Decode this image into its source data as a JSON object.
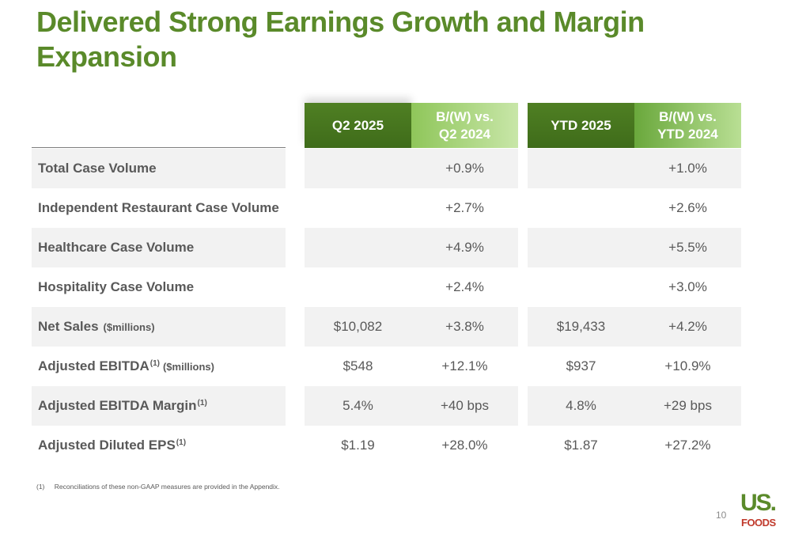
{
  "title": "Delivered Strong Earnings Growth and Margin Expansion",
  "headers": {
    "q2_2025": "Q2 2025",
    "q2_vs_line1": "B/(W) vs.",
    "q2_vs_line2": "Q2 2024",
    "ytd_2025": "YTD 2025",
    "ytd_vs_line1": "B/(W) vs.",
    "ytd_vs_line2": "YTD 2024"
  },
  "rows": [
    {
      "label": "Total Case Volume",
      "sup": "",
      "unit": "",
      "q2": "",
      "q2_vs": "+0.9%",
      "ytd": "",
      "ytd_vs": "+1.0%"
    },
    {
      "label": "Independent Restaurant Case Volume",
      "sup": "",
      "unit": "",
      "q2": "",
      "q2_vs": "+2.7%",
      "ytd": "",
      "ytd_vs": "+2.6%"
    },
    {
      "label": "Healthcare Case Volume",
      "sup": "",
      "unit": "",
      "q2": "",
      "q2_vs": "+4.9%",
      "ytd": "",
      "ytd_vs": "+5.5%"
    },
    {
      "label": "Hospitality Case Volume",
      "sup": "",
      "unit": "",
      "q2": "",
      "q2_vs": "+2.4%",
      "ytd": "",
      "ytd_vs": "+3.0%"
    },
    {
      "label": "Net Sales",
      "sup": "",
      "unit": "($millions)",
      "q2": "$10,082",
      "q2_vs": "+3.8%",
      "ytd": "$19,433",
      "ytd_vs": "+4.2%"
    },
    {
      "label": "Adjusted EBITDA",
      "sup": "(1)",
      "unit": "($millions)",
      "q2": "$548",
      "q2_vs": "+12.1%",
      "ytd": "$937",
      "ytd_vs": "+10.9%"
    },
    {
      "label": "Adjusted EBITDA Margin",
      "sup": "(1)",
      "unit": "",
      "q2": "5.4%",
      "q2_vs": "+40 bps",
      "ytd": "4.8%",
      "ytd_vs": "+29 bps"
    },
    {
      "label": "Adjusted Diluted EPS",
      "sup": "(1)",
      "unit": "",
      "q2": "$1.19",
      "q2_vs": "+28.0%",
      "ytd": "$1.87",
      "ytd_vs": "+27.2%"
    }
  ],
  "footnote": {
    "number": "(1)",
    "text": "Reconciliations of these non-GAAP measures are provided in the Appendix."
  },
  "page_number": "10",
  "logo": {
    "top": "US.",
    "bottom": "FOODS"
  },
  "colors": {
    "title_green": "#5a8a2a",
    "header_dark": "#4f7f23",
    "header_light": "#8fc65a",
    "logo_green": "#5a8a2a",
    "logo_red": "#c0392b"
  }
}
